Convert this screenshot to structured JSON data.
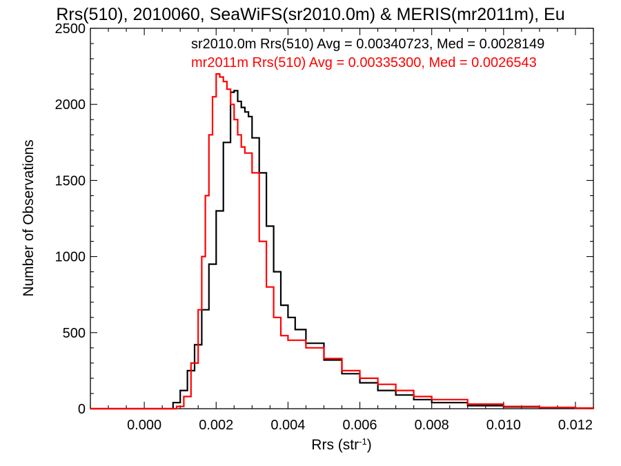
{
  "chart_data": {
    "type": "line",
    "title": "Rrs(510), 2010060, SeaWiFS(sr2010.0m) & MERIS(mr2011m), Eu",
    "xlabel_base": "Rrs (str",
    "xlabel_sup": "-1",
    "xlabel_close": ")",
    "ylabel": "Number of Observations",
    "xlim": [
      -0.0015,
      0.0125
    ],
    "ylim": [
      0,
      2500
    ],
    "xticks": [
      0.0,
      0.002,
      0.004,
      0.006,
      0.008,
      0.01,
      0.012
    ],
    "xtick_labels": [
      "0.000",
      "0.002",
      "0.004",
      "0.006",
      "0.008",
      "0.010",
      "0.012"
    ],
    "yticks": [
      0,
      500,
      1000,
      1500,
      2000,
      2500
    ],
    "ytick_labels": [
      "0",
      "500",
      "1000",
      "1500",
      "2000",
      "2500"
    ],
    "legend_position": "top-right",
    "series": [
      {
        "name": "sr2010.0m Rrs(510) Avg = 0.00340723, Med = 0.0028149",
        "color": "#000000",
        "x": [
          -0.0015,
          0.0005,
          0.0008,
          0.001,
          0.0012,
          0.0014,
          0.0016,
          0.0018,
          0.002,
          0.0022,
          0.0024,
          0.0025,
          0.0026,
          0.0027,
          0.0028,
          0.0029,
          0.003,
          0.0032,
          0.0034,
          0.0036,
          0.0038,
          0.004,
          0.0042,
          0.0045,
          0.005,
          0.0055,
          0.006,
          0.0065,
          0.007,
          0.0075,
          0.008,
          0.009,
          0.01,
          0.011,
          0.012,
          0.0125
        ],
        "y": [
          0,
          0,
          40,
          120,
          250,
          420,
          650,
          950,
          1300,
          1750,
          2080,
          2090,
          2020,
          1980,
          1950,
          1920,
          1780,
          1550,
          1200,
          900,
          680,
          600,
          520,
          430,
          320,
          230,
          170,
          120,
          90,
          60,
          40,
          20,
          12,
          8,
          4,
          2
        ]
      },
      {
        "name": "mr2011m Rrs(510) Avg = 0.00335300, Med = 0.0026543",
        "color": "#ff0000",
        "x": [
          -0.0015,
          0.0006,
          0.0009,
          0.0011,
          0.0013,
          0.0015,
          0.0016,
          0.0017,
          0.0018,
          0.0019,
          0.002,
          0.0021,
          0.0022,
          0.0023,
          0.0024,
          0.0025,
          0.0026,
          0.0027,
          0.0028,
          0.003,
          0.0032,
          0.0034,
          0.0036,
          0.0038,
          0.004,
          0.0045,
          0.005,
          0.0055,
          0.006,
          0.0065,
          0.007,
          0.0075,
          0.008,
          0.009,
          0.01,
          0.011,
          0.012,
          0.0125
        ],
        "y": [
          0,
          0,
          15,
          80,
          300,
          650,
          1000,
          1400,
          1800,
          2050,
          2200,
          2180,
          2150,
          2100,
          2000,
          1900,
          1800,
          1720,
          1680,
          1550,
          1100,
          800,
          600,
          480,
          450,
          400,
          330,
          250,
          200,
          160,
          120,
          80,
          60,
          30,
          15,
          8,
          4,
          2
        ]
      }
    ]
  }
}
